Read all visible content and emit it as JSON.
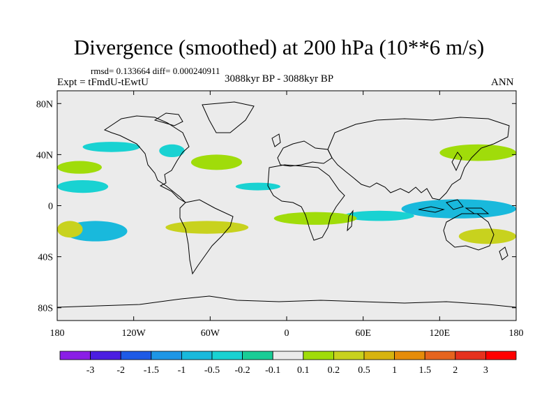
{
  "chart_data": {
    "type": "heatmap",
    "title": "Divergence (smoothed) at 200 hPa (10**6 m/s)",
    "stats_line": "rmsd= 0.133664 diff= 0.000240911",
    "experiment_label": "Expt = tFmdU-tEwtU",
    "period_label": "3088kyr BP - 3088kyr BP",
    "season_label": "ANN",
    "x_axis": {
      "range": [
        -180,
        180
      ],
      "ticks": [
        {
          "value": -180,
          "label": "180"
        },
        {
          "value": -120,
          "label": "120W"
        },
        {
          "value": -60,
          "label": "60W"
        },
        {
          "value": 0,
          "label": "0"
        },
        {
          "value": 60,
          "label": "60E"
        },
        {
          "value": 120,
          "label": "120E"
        },
        {
          "value": 180,
          "label": "180"
        }
      ]
    },
    "y_axis": {
      "range": [
        -90,
        90
      ],
      "ticks": [
        {
          "value": 80,
          "label": "80N"
        },
        {
          "value": 40,
          "label": "40N"
        },
        {
          "value": 0,
          "label": "0"
        },
        {
          "value": -40,
          "label": "40S"
        },
        {
          "value": -80,
          "label": "80S"
        }
      ]
    },
    "levels": [
      "-3",
      "-2",
      "-1.5",
      "-1",
      "-0.5",
      "-0.2",
      "-0.1",
      "0.1",
      "0.2",
      "0.5",
      "1",
      "1.5",
      "2",
      "3"
    ],
    "colorbar_colors": [
      "#8a1ee6",
      "#4b1ee1",
      "#1e5ae6",
      "#1e96e6",
      "#19b9dc",
      "#19d2d2",
      "#19cd96",
      "#ebebeb",
      "#a0dc0a",
      "#c8d21e",
      "#d7b40f",
      "#e68c0a",
      "#e6641e",
      "#e6321e",
      "#ff0000"
    ],
    "fill_colors": {
      "neg_small": "#19d2d2",
      "neg_mid": "#19b9dc",
      "pos_small": "#a0dc0a",
      "pos_mid": "#c8d21e",
      "background": "#ebebeb"
    },
    "regions": [
      {
        "sign": "neg",
        "level": "-0.1 to -0.2",
        "lon": [
          -180,
          -140
        ],
        "lat": [
          10,
          20
        ]
      },
      {
        "sign": "neg",
        "level": "-0.1 to -0.2",
        "lon": [
          -160,
          -115
        ],
        "lat": [
          42,
          50
        ]
      },
      {
        "sign": "neg",
        "level": "-0.1 to -0.2",
        "lon": [
          -100,
          -80
        ],
        "lat": [
          38,
          48
        ]
      },
      {
        "sign": "neg",
        "level": "-0.2 to -0.5",
        "lon": [
          -175,
          -125
        ],
        "lat": [
          -28,
          -12
        ]
      },
      {
        "sign": "neg",
        "level": "-0.1 to -0.2",
        "lon": [
          -40,
          -5
        ],
        "lat": [
          12,
          18
        ]
      },
      {
        "sign": "neg",
        "level": "-0.2 to -0.5",
        "lon": [
          90,
          180
        ],
        "lat": [
          -10,
          5
        ]
      },
      {
        "sign": "neg",
        "level": "-0.1 to -0.2",
        "lon": [
          45,
          100
        ],
        "lat": [
          -12,
          -4
        ]
      },
      {
        "sign": "pos",
        "level": "0.2 to 0.5",
        "lon": [
          -180,
          -160
        ],
        "lat": [
          -25,
          -12
        ]
      },
      {
        "sign": "pos",
        "level": "0.2 to 0.5",
        "lon": [
          -95,
          -30
        ],
        "lat": [
          -22,
          -12
        ]
      },
      {
        "sign": "pos",
        "level": "0.1 to 0.2",
        "lon": [
          -180,
          -145
        ],
        "lat": [
          25,
          35
        ]
      },
      {
        "sign": "pos",
        "level": "0.1 to 0.2",
        "lon": [
          -75,
          -35
        ],
        "lat": [
          28,
          40
        ]
      },
      {
        "sign": "pos",
        "level": "0.1 to 0.2",
        "lon": [
          -10,
          55
        ],
        "lat": [
          -15,
          -5
        ]
      },
      {
        "sign": "pos",
        "level": "0.1 to 0.2",
        "lon": [
          120,
          180
        ],
        "lat": [
          35,
          48
        ]
      },
      {
        "sign": "pos",
        "level": "0.2 to 0.5",
        "lon": [
          135,
          180
        ],
        "lat": [
          -30,
          -18
        ]
      }
    ]
  }
}
